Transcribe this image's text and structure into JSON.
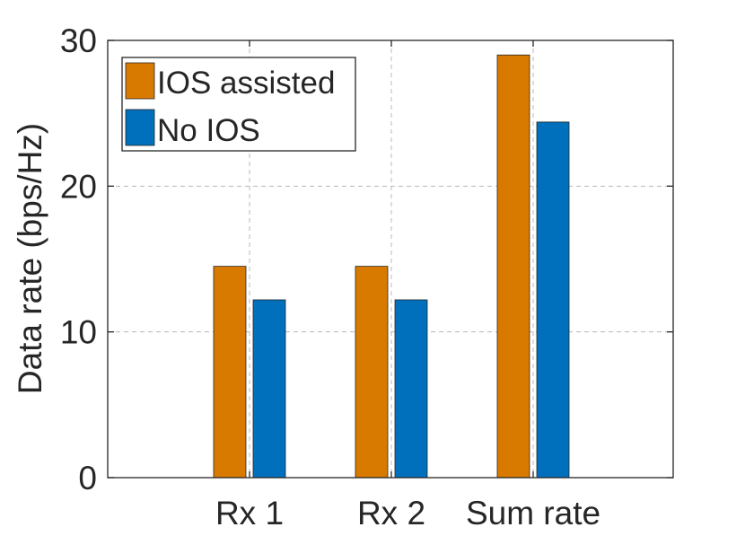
{
  "chart_data": {
    "type": "bar",
    "categories": [
      "Rx 1",
      "Rx 2",
      "Sum rate"
    ],
    "series": [
      {
        "name": "IOS assisted",
        "values": [
          14.5,
          14.5,
          29.0
        ],
        "color": "#D97A00"
      },
      {
        "name": "No IOS",
        "values": [
          12.2,
          12.2,
          24.4
        ],
        "color": "#0070BD"
      }
    ],
    "title": "",
    "xlabel": "",
    "ylabel": "Data rate (bps/Hz)",
    "ylim": [
      0,
      30
    ],
    "yticks": [
      "0",
      "10",
      "20",
      "30"
    ],
    "grid": true,
    "legend_position": "top-left"
  }
}
